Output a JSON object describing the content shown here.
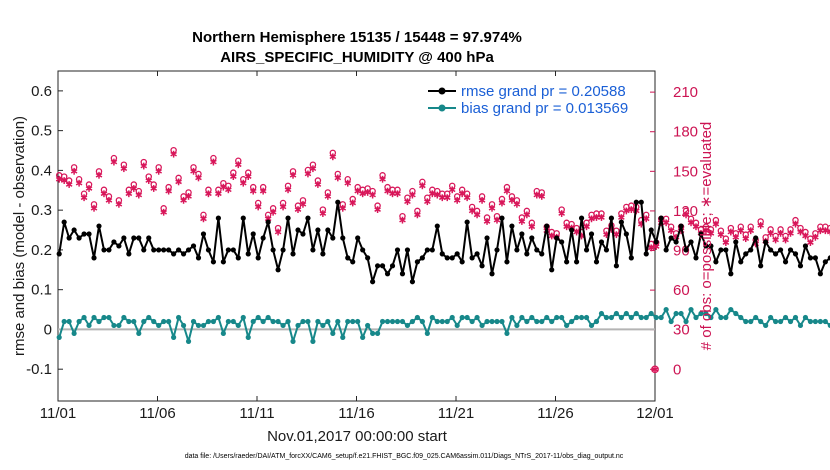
{
  "chart_data": {
    "type": "line",
    "title_line1": "Northern Hemisphere 15135 / 15448 = 97.974%",
    "title_line2": "AIRS_SPECIFIC_HUMIDITY @ 400 hPa",
    "xlabel": "Nov.01,2017 00:00:00 start",
    "ylabel": "rmse and bias (model - observation)",
    "ylabel_right": "# of obs: o=possible; ∗=evaluated",
    "footnote": "data file: /Users/raeder/DAI/ATM_forcXX/CAM6_setup/f.e21.FHIST_BGC.f09_025.CAM6assim.011/Diags_NTrS_2017-11/obs_diag_output.nc",
    "x_ticks": [
      "11/01",
      "11/06",
      "11/11",
      "11/16",
      "11/21",
      "11/26",
      "12/01"
    ],
    "x_range_days": [
      0,
      30
    ],
    "y_ticks": [
      "-0.1",
      "0",
      "0.1",
      "0.2",
      "0.3",
      "0.4",
      "0.5",
      "0.6"
    ],
    "y_tick_values": [
      -0.1,
      0,
      0.1,
      0.2,
      0.3,
      0.4,
      0.5,
      0.6
    ],
    "ylim": [
      -0.18,
      0.65
    ],
    "y_right_ticks": [
      "0",
      "30",
      "60",
      "90",
      "120",
      "150",
      "180",
      "210"
    ],
    "y_right_tick_values": [
      0,
      30,
      60,
      90,
      120,
      150,
      180,
      210
    ],
    "ylim_right": [
      -24,
      226
    ],
    "time_step_days": 0.25,
    "colors": {
      "rmse": "#000000",
      "bias": "#17888a",
      "obs": "#d8175a",
      "legend_text": "#1a5fd6",
      "zero_line": "#b4b4b4"
    },
    "series": [
      {
        "name": "rmse",
        "legend": "rmse grand pr = 0.20588",
        "values": [
          0.19,
          0.27,
          0.23,
          0.25,
          0.23,
          0.24,
          0.24,
          0.18,
          0.26,
          0.2,
          0.2,
          0.22,
          0.21,
          0.23,
          0.19,
          0.23,
          0.23,
          0.2,
          0.23,
          0.2,
          0.2,
          0.2,
          0.2,
          0.19,
          0.2,
          0.19,
          0.2,
          0.21,
          0.18,
          0.24,
          0.2,
          0.17,
          0.28,
          0.17,
          0.2,
          0.2,
          0.18,
          0.28,
          0.19,
          0.24,
          0.18,
          0.23,
          0.27,
          0.2,
          0.15,
          0.2,
          0.28,
          0.19,
          0.25,
          0.24,
          0.28,
          0.2,
          0.25,
          0.19,
          0.25,
          0.23,
          0.32,
          0.23,
          0.18,
          0.17,
          0.23,
          0.2,
          0.18,
          0.12,
          0.16,
          0.16,
          0.14,
          0.16,
          0.2,
          0.14,
          0.2,
          0.12,
          0.17,
          0.18,
          0.2,
          0.2,
          0.26,
          0.19,
          0.18,
          0.18,
          0.19,
          0.17,
          0.27,
          0.18,
          0.19,
          0.16,
          0.23,
          0.14,
          0.2,
          0.28,
          0.17,
          0.26,
          0.2,
          0.24,
          0.19,
          0.23,
          0.2,
          0.19,
          0.26,
          0.15,
          0.23,
          0.22,
          0.17,
          0.25,
          0.17,
          0.28,
          0.2,
          0.24,
          0.17,
          0.22,
          0.2,
          0.28,
          0.16,
          0.27,
          0.24,
          0.18,
          0.32,
          0.32,
          0.19,
          0.25,
          0.22,
          0.28,
          0.2,
          0.23,
          0.22,
          0.26,
          0.2,
          0.22,
          0.18,
          0.24,
          0.21,
          0.21,
          0.17,
          0.2,
          0.2,
          0.14,
          0.22,
          0.17,
          0.19,
          0.2,
          0.23,
          0.16,
          0.22,
          0.2,
          0.19,
          0.2,
          0.17,
          0.2,
          0.19,
          0.16,
          0.21,
          0.18,
          0.18,
          0.14,
          0.17,
          0.18,
          0.19,
          0.16,
          0.19,
          0.18,
          0.16,
          0.24,
          0.19,
          0.21,
          0.18,
          0.17,
          0.21,
          0.18,
          0.23,
          0.21,
          0.24,
          0.19,
          0.23,
          0.19,
          0.2,
          0.18
        ]
      },
      {
        "name": "bias",
        "legend": "bias grand pr = 0.013569",
        "values": [
          -0.02,
          0.02,
          0.02,
          -0.01,
          0.02,
          0.03,
          0.01,
          0.03,
          0.02,
          0.03,
          0.03,
          0.01,
          0.01,
          0.03,
          0.02,
          0.02,
          -0.01,
          0.02,
          0.03,
          0.02,
          0.01,
          0.02,
          0.02,
          -0.02,
          0.03,
          0.01,
          -0.03,
          0.02,
          0.01,
          0.01,
          0.02,
          0.02,
          0.03,
          -0.01,
          0.02,
          0.02,
          0.01,
          0.03,
          -0.02,
          0.02,
          0.03,
          0.02,
          0.03,
          0.02,
          0.02,
          0.01,
          0.02,
          -0.03,
          0.01,
          0.02,
          0.02,
          -0.03,
          0.02,
          0.01,
          0.02,
          -0.01,
          0.02,
          -0.02,
          0.02,
          0.02,
          0.02,
          -0.02,
          0.01,
          -0.01,
          -0.01,
          0.02,
          0.02,
          0.02,
          0.02,
          0.02,
          0.01,
          0.02,
          0.03,
          0.02,
          -0.01,
          0.03,
          0.02,
          0.02,
          0.02,
          0.03,
          0.01,
          0.03,
          0.03,
          0.02,
          0.03,
          0.01,
          0.02,
          0.02,
          0.02,
          0.02,
          -0.01,
          0.03,
          0.01,
          0.03,
          0.02,
          0.03,
          0.02,
          0.02,
          0.03,
          0.02,
          0.03,
          0.03,
          0.01,
          0.02,
          0.03,
          0.03,
          0.03,
          0.01,
          0.02,
          0.04,
          0.03,
          0.03,
          0.04,
          0.03,
          0.04,
          0.03,
          0.04,
          0.03,
          0.03,
          0.04,
          0.03,
          0.03,
          0.05,
          0.02,
          0.04,
          0.04,
          0.02,
          0.05,
          0.03,
          0.04,
          0.04,
          0.03,
          0.05,
          0.03,
          0.03,
          0.05,
          0.04,
          0.03,
          0.02,
          0.02,
          0.03,
          0.02,
          0.01,
          0.03,
          0.02,
          0.02,
          0.03,
          0.02,
          0.03,
          0.01,
          0.03,
          0.02,
          0.02,
          0.02,
          0.02,
          0.01,
          0.03,
          0.03,
          0.02,
          0.03,
          0.02,
          0.02,
          0.03,
          0.02,
          0.03,
          0.01,
          0.02,
          0.02,
          0.03,
          0.02,
          0.02,
          0.02,
          0.02,
          0.02
        ]
      },
      {
        "name": "obs_possible",
        "marker": "o",
        "values": [
          147,
          146,
          143,
          153,
          144,
          133,
          140,
          125,
          150,
          136,
          131,
          160,
          128,
          155,
          136,
          140,
          135,
          157,
          146,
          140,
          153,
          122,
          138,
          166,
          145,
          131,
          134,
          153,
          148,
          117,
          136,
          160,
          136,
          141,
          139,
          149,
          158,
          144,
          149,
          138,
          126,
          138,
          117,
          122,
          107,
          126,
          139,
          150,
          124,
          128,
          151,
          155,
          143,
          121,
          134,
          164,
          148,
          125,
          144,
          129,
          138,
          136,
          137,
          135,
          124,
          147,
          138,
          136,
          136,
          116,
          130,
          135,
          120,
          142,
          130,
          136,
          135,
          133,
          133,
          139,
          131,
          136,
          133,
          123,
          120,
          131,
          115,
          125,
          116,
          129,
          138,
          131,
          128,
          115,
          120,
          111,
          135,
          134,
          108,
          104,
          103,
          121,
          111,
          110,
          107,
          104,
          111,
          117,
          118,
          118,
          105,
          109,
          105,
          118,
          123,
          124,
          123,
          113,
          117,
          95,
          96,
          114,
          114,
          108,
          103,
          108,
          120,
          114,
          111,
          106,
          108,
          106,
          113,
          105,
          99,
          107,
          103,
          108,
          102,
          108,
          98,
          112,
          100,
          106,
          101,
          106,
          101,
          106,
          113,
          107,
          104,
          99,
          103,
          108,
          108,
          107,
          112,
          109,
          114,
          118,
          113,
          125,
          118,
          103,
          121,
          121,
          109,
          109,
          108,
          107,
          110
        ]
      },
      {
        "name": "obs_evaluated",
        "marker": "*",
        "values": [
          144,
          143,
          140,
          150,
          141,
          130,
          137,
          122,
          147,
          133,
          128,
          157,
          125,
          152,
          133,
          137,
          132,
          154,
          143,
          137,
          150,
          119,
          135,
          163,
          142,
          128,
          131,
          150,
          145,
          114,
          133,
          157,
          133,
          138,
          136,
          146,
          155,
          141,
          146,
          135,
          123,
          135,
          114,
          119,
          104,
          123,
          136,
          147,
          121,
          125,
          148,
          152,
          140,
          118,
          131,
          161,
          145,
          122,
          141,
          126,
          135,
          133,
          134,
          132,
          121,
          144,
          135,
          133,
          133,
          113,
          127,
          132,
          117,
          139,
          127,
          133,
          132,
          130,
          130,
          136,
          128,
          133,
          130,
          120,
          117,
          128,
          112,
          122,
          113,
          126,
          135,
          128,
          125,
          112,
          117,
          108,
          132,
          131,
          105,
          101,
          100,
          118,
          108,
          107,
          104,
          101,
          108,
          114,
          115,
          115,
          102,
          106,
          102,
          115,
          120,
          121,
          120,
          110,
          114,
          92,
          93,
          111,
          111,
          105,
          100,
          105,
          117,
          111,
          108,
          103,
          105,
          103,
          110,
          102,
          96,
          104,
          100,
          105,
          99,
          105,
          95,
          109,
          97,
          103,
          98,
          103,
          98,
          103,
          110,
          104,
          101,
          96,
          100,
          105,
          105,
          104,
          109,
          106,
          111,
          115,
          110,
          122,
          115,
          100,
          118,
          118,
          106,
          106,
          105,
          104,
          107
        ]
      },
      {
        "name": "obs_zero",
        "note": "points at 0 shown past the right edge",
        "values": [
          0
        ]
      }
    ]
  }
}
